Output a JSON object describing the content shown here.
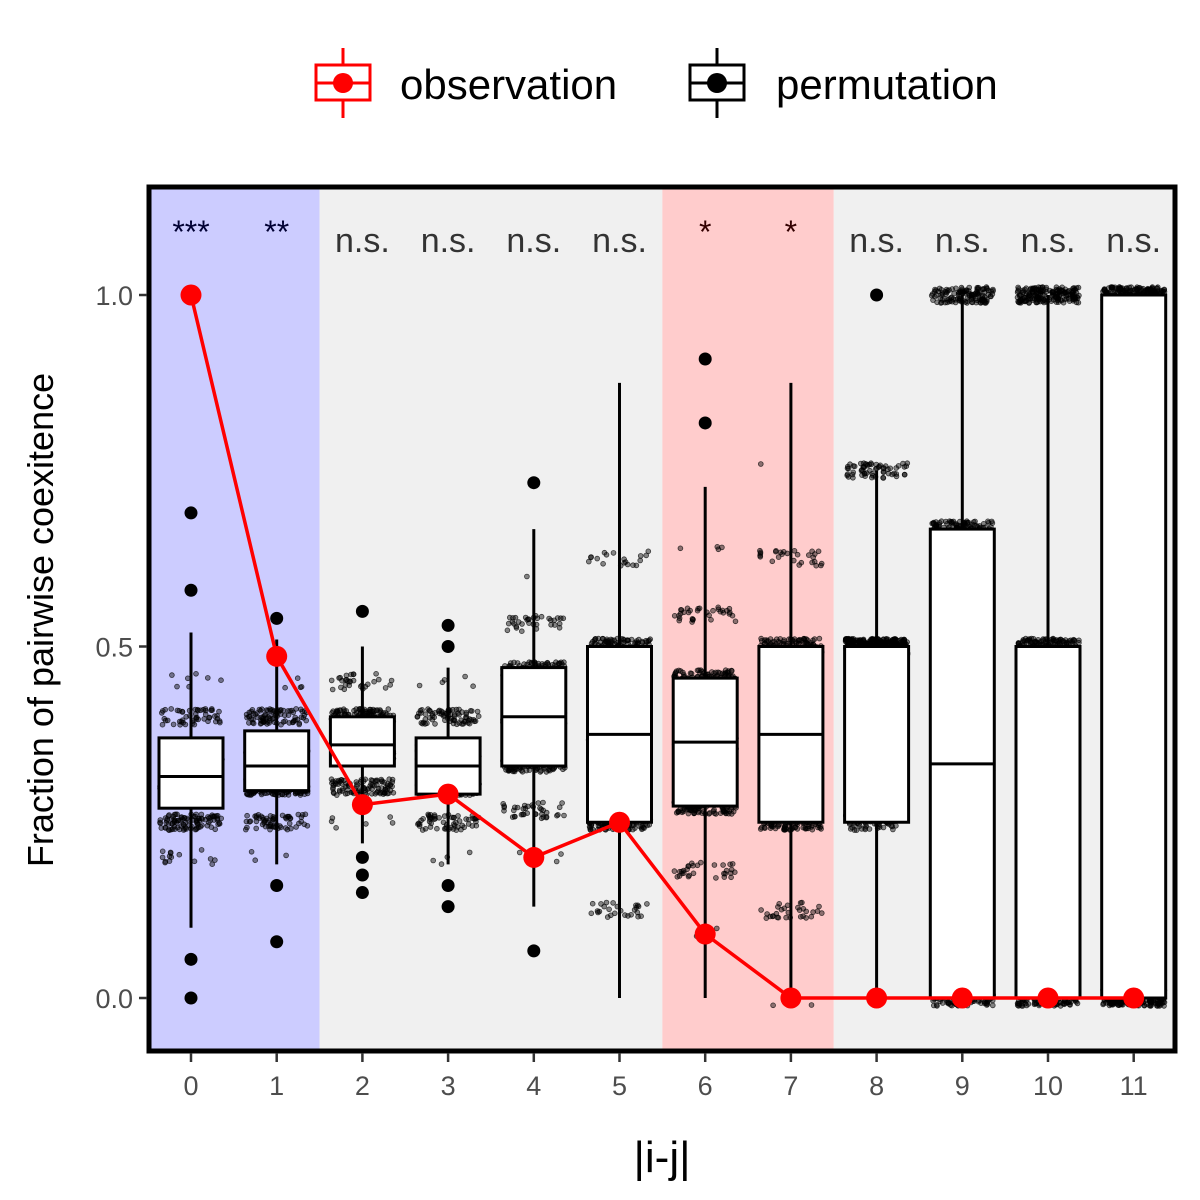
{
  "chart_data": {
    "type": "box",
    "xlabel": "|i-j|",
    "ylabel": "Fraction of pairwise coexitence",
    "categories": [
      "0",
      "1",
      "2",
      "3",
      "4",
      "5",
      "6",
      "7",
      "8",
      "9",
      "10",
      "11"
    ],
    "ylim": [
      -0.075,
      1.16
    ],
    "yticks": [
      0.0,
      0.5,
      1.0
    ],
    "ytick_labels": [
      "0.0",
      "0.5",
      "1.0"
    ],
    "grid": false,
    "legend": {
      "position": "top",
      "entries": [
        {
          "label": "observation",
          "color": "#ff0000",
          "series": "observation"
        },
        {
          "label": "permutation",
          "color": "#000000",
          "series": "permutation"
        }
      ]
    },
    "observation": {
      "name": "observation",
      "color": "#ff0000",
      "values": [
        1.0,
        0.486,
        0.275,
        0.29,
        0.2,
        0.25,
        0.091,
        0.0,
        0.0,
        0.0,
        0.0,
        0.0
      ]
    },
    "permutation": {
      "name": "permutation",
      "color": "#000000",
      "boxes": [
        {
          "x": "0",
          "q1": 0.27,
          "median": 0.315,
          "q3": 0.37,
          "whisker_low": 0.1,
          "whisker_high": 0.52,
          "outliers": [
            0.69,
            0.58,
            0.055,
            0.0
          ]
        },
        {
          "x": "1",
          "q1": 0.295,
          "median": 0.33,
          "q3": 0.38,
          "whisker_low": 0.19,
          "whisker_high": 0.51,
          "outliers": [
            0.54,
            0.16,
            0.08
          ]
        },
        {
          "x": "2",
          "q1": 0.33,
          "median": 0.36,
          "q3": 0.4,
          "whisker_low": 0.22,
          "whisker_high": 0.5,
          "outliers": [
            0.55,
            0.2,
            0.175,
            0.15
          ]
        },
        {
          "x": "3",
          "q1": 0.29,
          "median": 0.33,
          "q3": 0.37,
          "whisker_low": 0.19,
          "whisker_high": 0.47,
          "outliers": [
            0.53,
            0.5,
            0.16,
            0.13
          ]
        },
        {
          "x": "4",
          "q1": 0.33,
          "median": 0.4,
          "q3": 0.47,
          "whisker_low": 0.13,
          "whisker_high": 0.667,
          "outliers": [
            0.733,
            0.067
          ]
        },
        {
          "x": "5",
          "q1": 0.25,
          "median": 0.375,
          "q3": 0.5,
          "whisker_low": 0.0,
          "whisker_high": 0.875,
          "outliers": []
        },
        {
          "x": "6",
          "q1": 0.273,
          "median": 0.364,
          "q3": 0.455,
          "whisker_low": 0.0,
          "whisker_high": 0.727,
          "outliers": [
            0.909,
            0.818
          ]
        },
        {
          "x": "7",
          "q1": 0.25,
          "median": 0.375,
          "q3": 0.5,
          "whisker_low": 0.0,
          "whisker_high": 0.875,
          "outliers": []
        },
        {
          "x": "8",
          "q1": 0.25,
          "median": 0.5,
          "q3": 0.5,
          "whisker_low": 0.0,
          "whisker_high": 0.75,
          "outliers": [
            1.0
          ]
        },
        {
          "x": "9",
          "q1": 0.0,
          "median": 0.333,
          "q3": 0.667,
          "whisker_low": 0.0,
          "whisker_high": 1.0,
          "outliers": []
        },
        {
          "x": "10",
          "q1": 0.0,
          "median": 0.5,
          "q3": 0.5,
          "whisker_low": 0.0,
          "whisker_high": 1.0,
          "outliers": []
        },
        {
          "x": "11",
          "q1": 0.0,
          "median": 1.0,
          "q3": 1.0,
          "whisker_low": 0.0,
          "whisker_high": 1.0,
          "outliers": []
        }
      ]
    },
    "jitter_levels": [
      [
        0.1,
        0.15,
        0.2,
        0.25,
        0.3,
        0.35,
        0.4,
        0.45,
        0.5
      ],
      [
        0.2,
        0.25,
        0.3,
        0.35,
        0.4,
        0.45,
        0.5
      ],
      [
        0.25,
        0.3,
        0.35,
        0.4,
        0.45,
        0.5
      ],
      [
        0.2,
        0.25,
        0.3,
        0.35,
        0.4,
        0.45,
        0.5
      ],
      [
        0.133,
        0.2,
        0.267,
        0.333,
        0.4,
        0.467,
        0.533,
        0.6,
        0.667
      ],
      [
        0.0,
        0.125,
        0.25,
        0.375,
        0.5,
        0.625,
        0.75,
        0.875
      ],
      [
        0.0,
        0.091,
        0.182,
        0.273,
        0.364,
        0.455,
        0.545,
        0.636,
        0.727
      ],
      [
        0.0,
        0.125,
        0.25,
        0.375,
        0.5,
        0.625,
        0.75,
        0.875
      ],
      [
        0.0,
        0.25,
        0.5,
        0.75,
        1.0
      ],
      [
        0.0,
        0.333,
        0.667,
        1.0
      ],
      [
        0.0,
        0.5,
        1.0
      ],
      [
        0.0,
        1.0
      ]
    ],
    "significance": [
      {
        "x": "0",
        "label": "***",
        "color": "#000033"
      },
      {
        "x": "1",
        "label": "**",
        "color": "#000033"
      },
      {
        "x": "2",
        "label": "n.s.",
        "color": "#333333"
      },
      {
        "x": "3",
        "label": "n.s.",
        "color": "#333333"
      },
      {
        "x": "4",
        "label": "n.s.",
        "color": "#333333"
      },
      {
        "x": "5",
        "label": "n.s.",
        "color": "#333333"
      },
      {
        "x": "6",
        "label": "*",
        "color": "#330000"
      },
      {
        "x": "7",
        "label": "*",
        "color": "#330000"
      },
      {
        "x": "8",
        "label": "n.s.",
        "color": "#333333"
      },
      {
        "x": "9",
        "label": "n.s.",
        "color": "#333333"
      },
      {
        "x": "10",
        "label": "n.s.",
        "color": "#333333"
      },
      {
        "x": "11",
        "label": "n.s.",
        "color": "#333333"
      }
    ],
    "background_bands": [
      {
        "from": "0",
        "to": "1",
        "color": "#ccccff"
      },
      {
        "from": "2",
        "to": "5",
        "color": "#f0f0f0"
      },
      {
        "from": "6",
        "to": "7",
        "color": "#ffcccc"
      },
      {
        "from": "8",
        "to": "11",
        "color": "#f0f0f0"
      }
    ]
  }
}
